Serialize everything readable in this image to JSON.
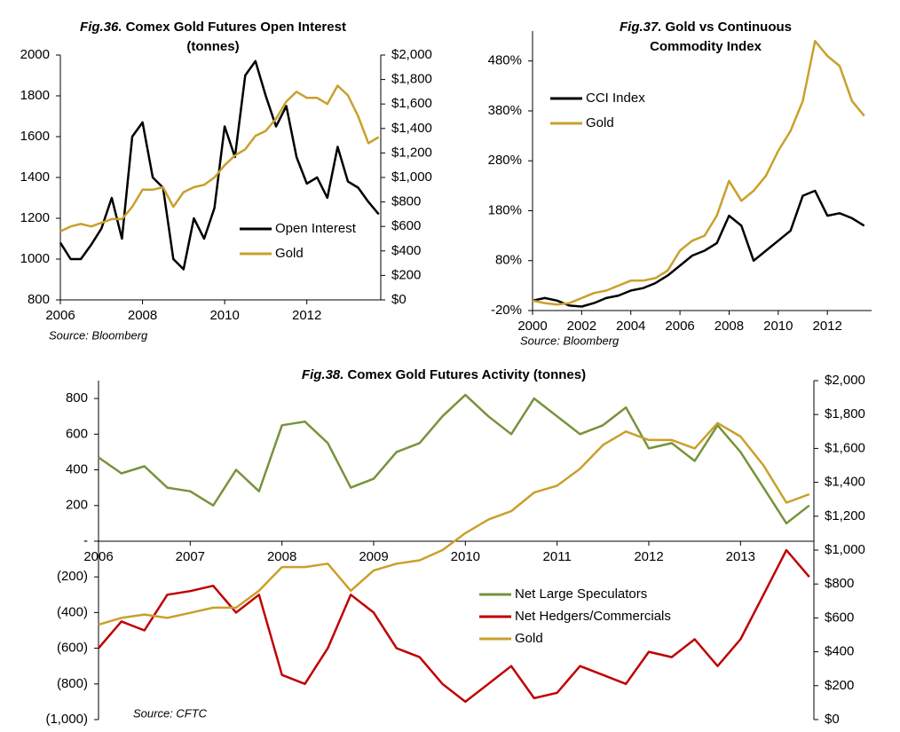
{
  "chart_data": [
    {
      "type": "line",
      "title_prefix": "Fig.36.",
      "title": "Comex Gold Futures Open Interest (tonnes)",
      "source": "Source: Bloomberg",
      "x": [
        2006,
        2006.25,
        2006.5,
        2006.75,
        2007,
        2007.25,
        2007.5,
        2007.75,
        2008,
        2008.25,
        2008.5,
        2008.75,
        2009,
        2009.25,
        2009.5,
        2009.75,
        2010,
        2010.25,
        2010.5,
        2010.75,
        2011,
        2011.25,
        2011.5,
        2011.75,
        2012,
        2012.25,
        2012.5,
        2012.75,
        2013,
        2013.25,
        2013.5,
        2013.75
      ],
      "xlim": [
        2006,
        2013.8
      ],
      "xticks": [
        2006,
        2008,
        2010,
        2012
      ],
      "ylim": [
        800,
        2000
      ],
      "yticks": [
        800,
        1000,
        1200,
        1400,
        1600,
        1800,
        2000
      ],
      "y2lim": [
        0,
        2000
      ],
      "y2ticks": [
        {
          "value": 0,
          "label": "$0"
        },
        {
          "value": 200,
          "label": "$200"
        },
        {
          "value": 400,
          "label": "$400"
        },
        {
          "value": 600,
          "label": "$600"
        },
        {
          "value": 800,
          "label": "$800"
        },
        {
          "value": 1000,
          "label": "$1,000"
        },
        {
          "value": 1200,
          "label": "$1,200"
        },
        {
          "value": 1400,
          "label": "$1,400"
        },
        {
          "value": 1600,
          "label": "$1,600"
        },
        {
          "value": 1800,
          "label": "$1,800"
        },
        {
          "value": 2000,
          "label": "$2,000"
        }
      ],
      "legend": "lower right",
      "series": [
        {
          "name": "Open Interest",
          "color": "#000000",
          "values": [
            1080,
            1000,
            1000,
            1070,
            1150,
            1300,
            1100,
            1600,
            1670,
            1400,
            1350,
            1000,
            950,
            1200,
            1100,
            1250,
            1650,
            1500,
            1900,
            1970,
            1800,
            1650,
            1750,
            1500,
            1370,
            1400,
            1300,
            1550,
            1380,
            1350,
            1280,
            1220
          ]
        },
        {
          "name": "Gold",
          "color": "#C9A02C",
          "axis": "y2",
          "values": [
            560,
            600,
            620,
            600,
            630,
            660,
            660,
            760,
            900,
            900,
            920,
            760,
            880,
            920,
            940,
            1000,
            1100,
            1180,
            1230,
            1340,
            1380,
            1480,
            1620,
            1700,
            1650,
            1650,
            1600,
            1750,
            1670,
            1500,
            1280,
            1330
          ]
        }
      ]
    },
    {
      "type": "line",
      "title_prefix": "Fig.37.",
      "title": "Gold vs Continuous Commodity Index",
      "source": "Source: Bloomberg",
      "x": [
        2000,
        2000.5,
        2001,
        2001.5,
        2002,
        2002.5,
        2003,
        2003.5,
        2004,
        2004.5,
        2005,
        2005.5,
        2006,
        2006.5,
        2007,
        2007.5,
        2008,
        2008.5,
        2009,
        2009.5,
        2010,
        2010.5,
        2011,
        2011.5,
        2012,
        2012.5,
        2013,
        2013.5
      ],
      "xlim": [
        2000,
        2013.8
      ],
      "xticks": [
        2000,
        2002,
        2004,
        2006,
        2008,
        2010,
        2012
      ],
      "ylim": [
        -20,
        540
      ],
      "yticks": [
        {
          "value": -20,
          "label": "-20%"
        },
        {
          "value": 80,
          "label": "80%"
        },
        {
          "value": 180,
          "label": "180%"
        },
        {
          "value": 280,
          "label": "280%"
        },
        {
          "value": 380,
          "label": "380%"
        },
        {
          "value": 480,
          "label": "480%"
        }
      ],
      "legend": "upper left",
      "series": [
        {
          "name": "CCI Index",
          "color": "#000000",
          "values": [
            0,
            5,
            0,
            -10,
            -12,
            -5,
            5,
            10,
            20,
            25,
            35,
            50,
            70,
            90,
            100,
            115,
            170,
            150,
            80,
            100,
            120,
            140,
            210,
            220,
            170,
            175,
            165,
            150
          ]
        },
        {
          "name": "Gold",
          "color": "#C9A02C",
          "values": [
            0,
            -5,
            -8,
            -5,
            5,
            15,
            20,
            30,
            40,
            40,
            45,
            60,
            100,
            120,
            130,
            170,
            240,
            200,
            220,
            250,
            300,
            340,
            400,
            520,
            490,
            470,
            400,
            370
          ]
        }
      ]
    },
    {
      "type": "line",
      "title_prefix": "Fig.38.",
      "title": "Comex Gold Futures Activity (tonnes)",
      "source": "Source: CFTC",
      "x": [
        2006,
        2006.25,
        2006.5,
        2006.75,
        2007,
        2007.25,
        2007.5,
        2007.75,
        2008,
        2008.25,
        2008.5,
        2008.75,
        2009,
        2009.25,
        2009.5,
        2009.75,
        2010,
        2010.25,
        2010.5,
        2010.75,
        2011,
        2011.25,
        2011.5,
        2011.75,
        2012,
        2012.25,
        2012.5,
        2012.75,
        2013,
        2013.25,
        2013.5,
        2013.75
      ],
      "xlim": [
        2006,
        2013.8
      ],
      "xticks": [
        2006,
        2007,
        2008,
        2009,
        2010,
        2011,
        2012,
        2013
      ],
      "ylim": [
        -1000,
        900
      ],
      "yticks": [
        {
          "value": -1000,
          "label": "(1,000)"
        },
        {
          "value": -800,
          "label": "(800)"
        },
        {
          "value": -600,
          "label": "(600)"
        },
        {
          "value": -400,
          "label": "(400)"
        },
        {
          "value": -200,
          "label": "(200)"
        },
        {
          "value": 0,
          "label": "-"
        },
        200,
        400,
        600,
        800
      ],
      "y2lim": [
        0,
        2000
      ],
      "y2ticks": [
        {
          "value": 0,
          "label": "$0"
        },
        {
          "value": 200,
          "label": "$200"
        },
        {
          "value": 400,
          "label": "$400"
        },
        {
          "value": 600,
          "label": "$600"
        },
        {
          "value": 800,
          "label": "$800"
        },
        {
          "value": 1000,
          "label": "$1,000"
        },
        {
          "value": 1200,
          "label": "$1,200"
        },
        {
          "value": 1400,
          "label": "$1,400"
        },
        {
          "value": 1600,
          "label": "$1,600"
        },
        {
          "value": 1800,
          "label": "$1,800"
        },
        {
          "value": 2000,
          "label": "$2,000"
        }
      ],
      "legend": "lower right",
      "series": [
        {
          "name": "Net Large Speculators",
          "color": "#77933C",
          "values": [
            470,
            380,
            420,
            300,
            280,
            200,
            400,
            280,
            650,
            670,
            550,
            300,
            350,
            500,
            550,
            700,
            820,
            700,
            600,
            800,
            700,
            600,
            650,
            750,
            520,
            550,
            450,
            650,
            500,
            300,
            100,
            200
          ]
        },
        {
          "name": "Net Hedgers/Commercials",
          "color": "#C00000",
          "values": [
            -600,
            -450,
            -500,
            -300,
            -280,
            -250,
            -400,
            -300,
            -750,
            -800,
            -600,
            -300,
            -400,
            -600,
            -650,
            -800,
            -900,
            -800,
            -700,
            -880,
            -850,
            -700,
            -750,
            -800,
            -620,
            -650,
            -550,
            -700,
            -550,
            -300,
            -50,
            -200
          ]
        },
        {
          "name": "Gold",
          "color": "#C9A02C",
          "axis": "y2",
          "values": [
            560,
            600,
            620,
            600,
            630,
            660,
            660,
            760,
            900,
            900,
            920,
            760,
            880,
            920,
            940,
            1000,
            1100,
            1180,
            1230,
            1340,
            1380,
            1480,
            1620,
            1700,
            1650,
            1650,
            1600,
            1750,
            1670,
            1500,
            1280,
            1330
          ]
        }
      ]
    }
  ]
}
